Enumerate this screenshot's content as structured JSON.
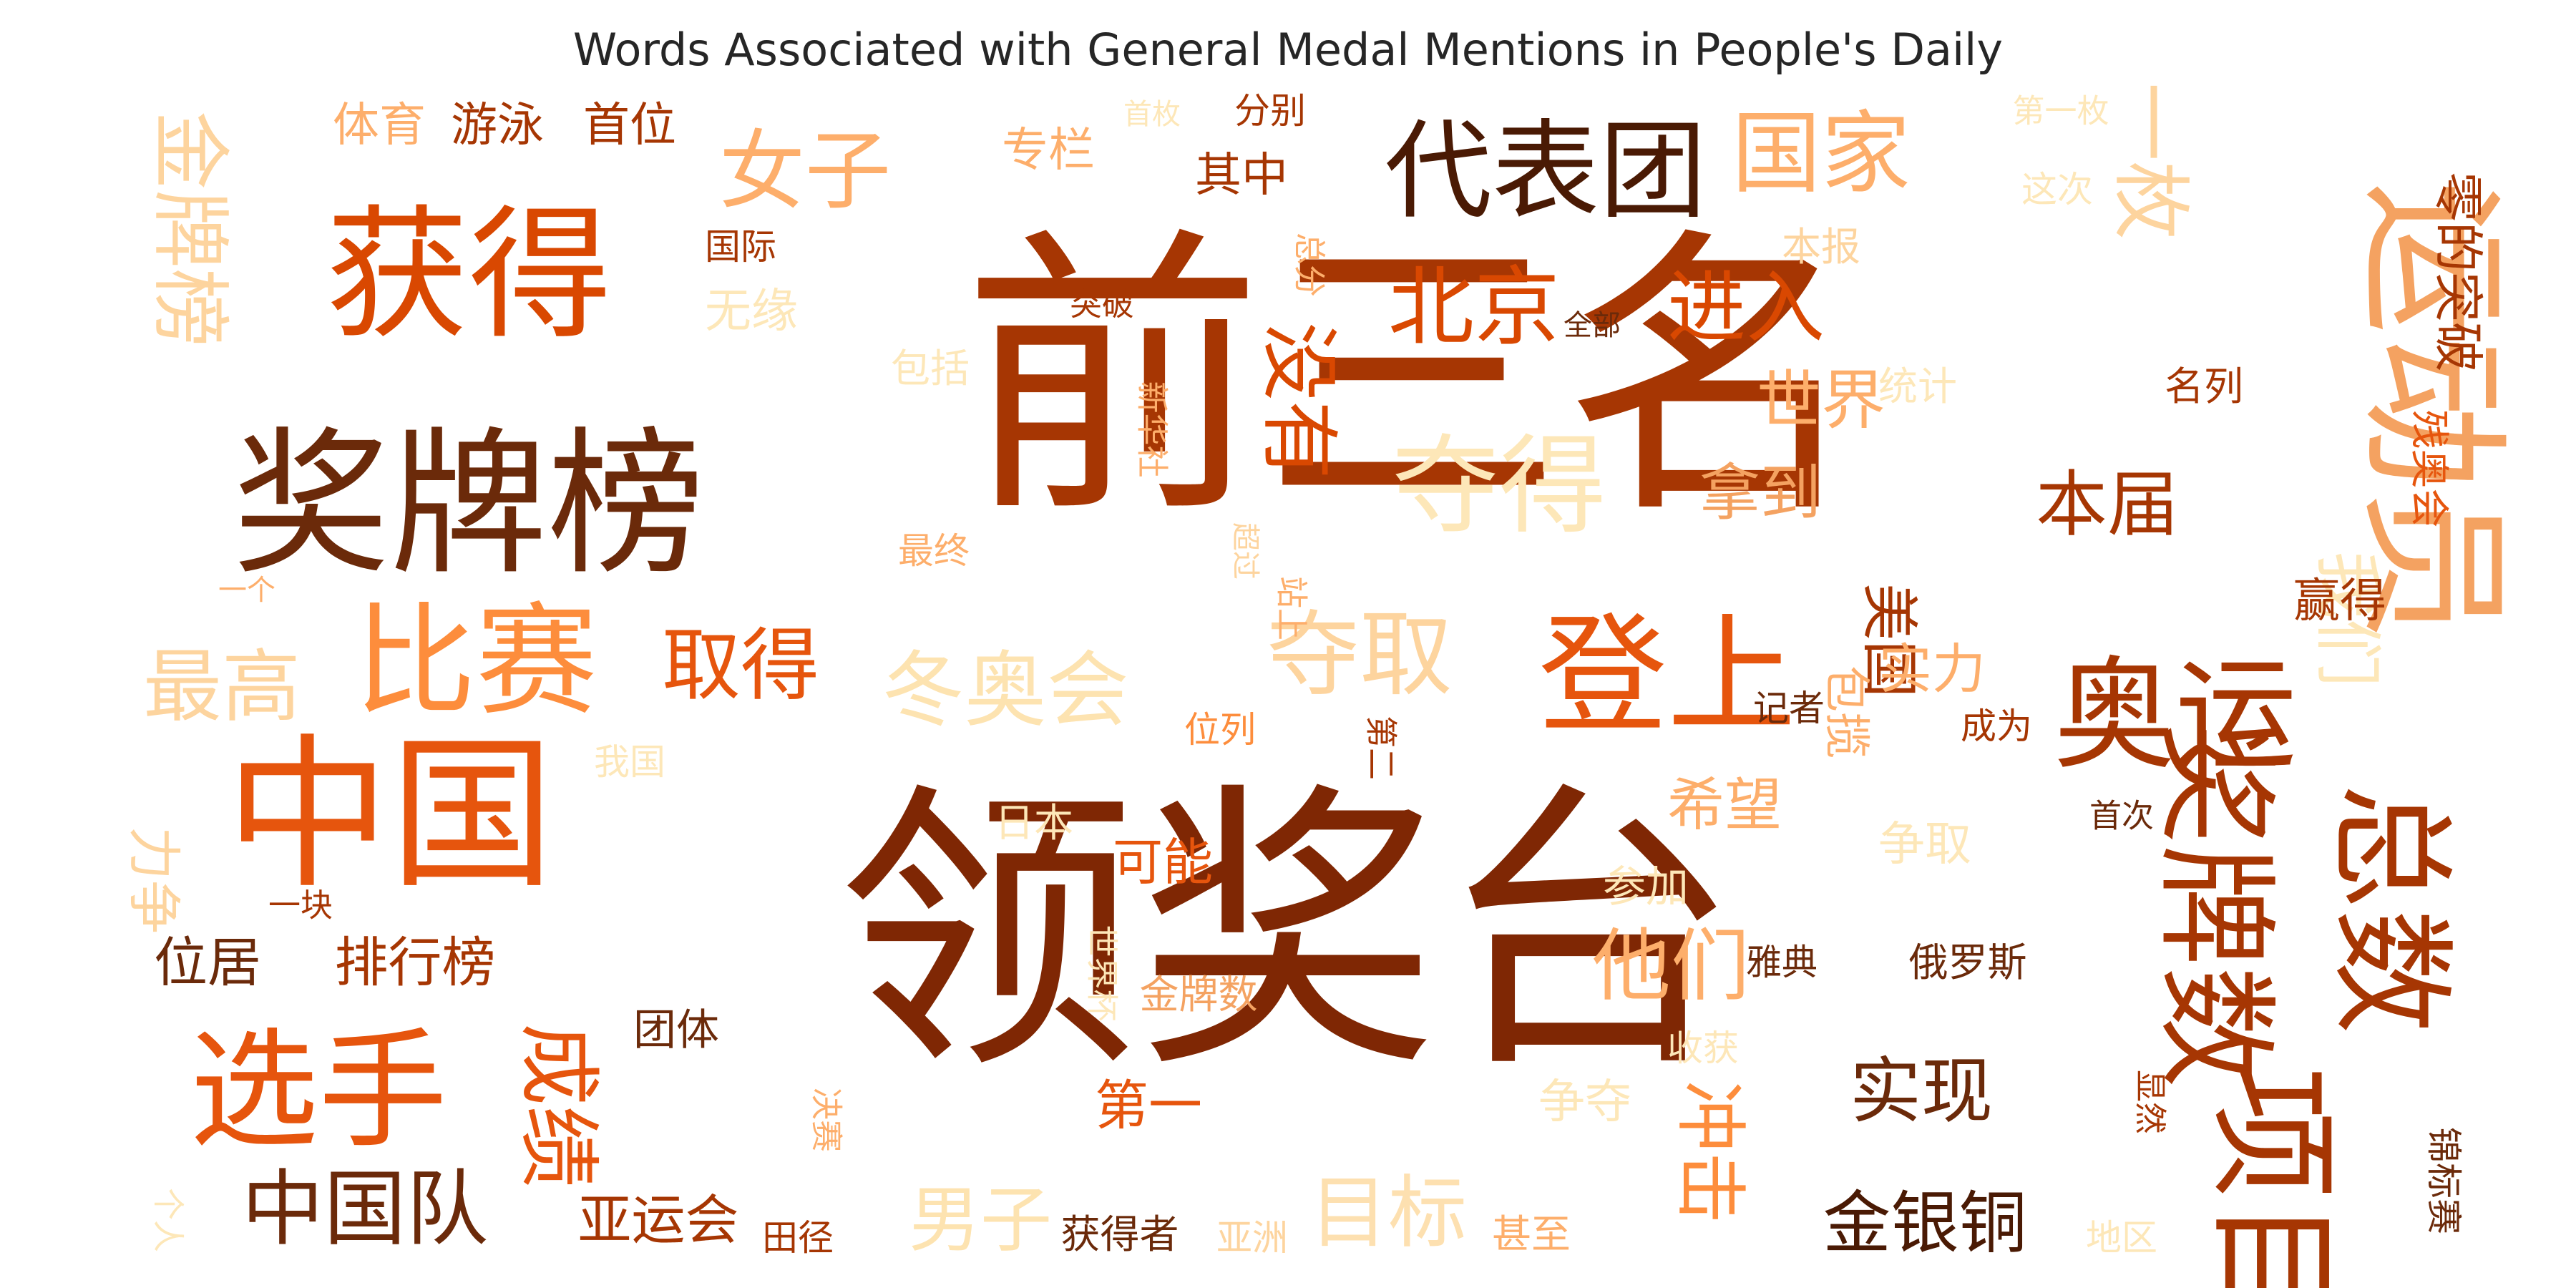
{
  "chart_data": {
    "type": "wordcloud",
    "title": "Words Associated with General Medal Mentions in People's Daily",
    "colormap": "Oranges",
    "words": [
      {
        "text": "前三名",
        "weight": 100
      },
      {
        "text": "领奖台",
        "weight": 98
      },
      {
        "text": "奖牌榜",
        "weight": 74
      },
      {
        "text": "获得",
        "weight": 60
      },
      {
        "text": "中国",
        "weight": 56
      },
      {
        "text": "运动员",
        "weight": 52
      },
      {
        "text": "奖牌数",
        "weight": 48
      },
      {
        "text": "总数",
        "weight": 46
      },
      {
        "text": "项目",
        "weight": 44
      },
      {
        "text": "代表团",
        "weight": 42
      },
      {
        "text": "选手",
        "weight": 42
      },
      {
        "text": "登上",
        "weight": 40
      },
      {
        "text": "奥运",
        "weight": 38
      },
      {
        "text": "比赛",
        "weight": 36
      },
      {
        "text": "夺得",
        "weight": 34
      },
      {
        "text": "国家",
        "weight": 30
      },
      {
        "text": "北京",
        "weight": 28
      },
      {
        "text": "冬奥会",
        "weight": 28
      },
      {
        "text": "夺取",
        "weight": 28
      },
      {
        "text": "成绩",
        "weight": 26
      },
      {
        "text": "中国队",
        "weight": 26
      },
      {
        "text": "女子",
        "weight": 26
      },
      {
        "text": "金牌榜",
        "weight": 26
      },
      {
        "text": "没有",
        "weight": 24
      },
      {
        "text": "一枚",
        "weight": 24
      },
      {
        "text": "最高",
        "weight": 24
      },
      {
        "text": "取得",
        "weight": 24
      },
      {
        "text": "进入",
        "weight": 24
      },
      {
        "text": "他们",
        "weight": 24
      },
      {
        "text": "目标",
        "weight": 24
      },
      {
        "text": "冲击",
        "weight": 22
      },
      {
        "text": "本届",
        "weight": 22
      },
      {
        "text": "世界",
        "weight": 22
      },
      {
        "text": "我们",
        "weight": 22
      },
      {
        "text": "实现",
        "weight": 22
      },
      {
        "text": "金银铜",
        "weight": 22
      },
      {
        "text": "男子",
        "weight": 22
      },
      {
        "text": "美国",
        "weight": 20
      },
      {
        "text": "拿到",
        "weight": 20
      },
      {
        "text": "希望",
        "weight": 20
      },
      {
        "text": "零的突破",
        "weight": 20
      },
      {
        "text": "实力",
        "weight": 18
      },
      {
        "text": "力争",
        "weight": 18
      },
      {
        "text": "位居",
        "weight": 18
      },
      {
        "text": "排行榜",
        "weight": 18
      },
      {
        "text": "亚运会",
        "weight": 18
      },
      {
        "text": "第一",
        "weight": 18
      },
      {
        "text": "可能",
        "weight": 16
      },
      {
        "text": "体育",
        "weight": 16
      },
      {
        "text": "游泳",
        "weight": 16
      },
      {
        "text": "首位",
        "weight": 16
      },
      {
        "text": "专栏",
        "weight": 16
      },
      {
        "text": "其中",
        "weight": 16
      },
      {
        "text": "无缘",
        "weight": 16
      },
      {
        "text": "争取",
        "weight": 16
      },
      {
        "text": "参加",
        "weight": 16
      },
      {
        "text": "残奥会",
        "weight": 16
      },
      {
        "text": "赢得",
        "weight": 16
      },
      {
        "text": "包揽",
        "weight": 14
      },
      {
        "text": "雅典",
        "weight": 14
      },
      {
        "text": "俄罗斯",
        "weight": 14
      },
      {
        "text": "团体",
        "weight": 14
      },
      {
        "text": "金牌数",
        "weight": 14
      },
      {
        "text": "获得者",
        "weight": 14
      },
      {
        "text": "亚洲",
        "weight": 14
      },
      {
        "text": "甚至",
        "weight": 14
      },
      {
        "text": "田径",
        "weight": 14
      },
      {
        "text": "锦标赛",
        "weight": 14
      },
      {
        "text": "地区",
        "weight": 14
      },
      {
        "text": "争夺",
        "weight": 14
      },
      {
        "text": "收获",
        "weight": 12
      },
      {
        "text": "首次",
        "weight": 12
      },
      {
        "text": "成为",
        "weight": 12
      },
      {
        "text": "记者",
        "weight": 12
      },
      {
        "text": "位列",
        "weight": 12
      },
      {
        "text": "第二",
        "weight": 12
      },
      {
        "text": "站上",
        "weight": 12
      },
      {
        "text": "超过",
        "weight": 12
      },
      {
        "text": "最终",
        "weight": 12
      },
      {
        "text": "新华社",
        "weight": 12
      },
      {
        "text": "包括",
        "weight": 12
      },
      {
        "text": "统计",
        "weight": 12
      },
      {
        "text": "名列",
        "weight": 12
      },
      {
        "text": "突破",
        "weight": 12
      },
      {
        "text": "全部",
        "weight": 12
      },
      {
        "text": "总分",
        "weight": 12
      },
      {
        "text": "国际",
        "weight": 12
      },
      {
        "text": "本报",
        "weight": 12
      },
      {
        "text": "这次",
        "weight": 12
      },
      {
        "text": "第一枚",
        "weight": 12
      },
      {
        "text": "首枚",
        "weight": 12
      },
      {
        "text": "分别",
        "weight": 12
      },
      {
        "text": "我国",
        "weight": 12
      },
      {
        "text": "日本",
        "weight": 12
      },
      {
        "text": "一块",
        "weight": 12
      },
      {
        "text": "一个",
        "weight": 10
      },
      {
        "text": "决赛",
        "weight": 10
      },
      {
        "text": "显然",
        "weight": 10
      },
      {
        "text": "个人",
        "weight": 10
      },
      {
        "text": "世界杯",
        "weight": 10
      }
    ]
  }
}
